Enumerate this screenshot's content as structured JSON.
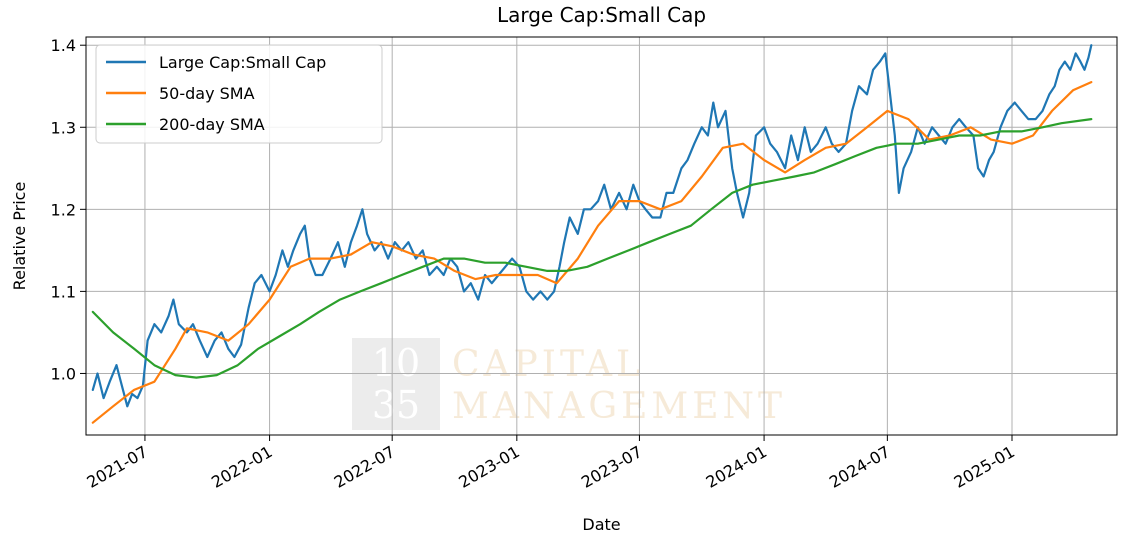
{
  "chart_data": {
    "type": "line",
    "title": "Large Cap:Small Cap",
    "xlabel": "Date",
    "ylabel": "Relative Price",
    "xlim": [
      "2021-04-05",
      "2025-06-05"
    ],
    "ylim": [
      0.925,
      1.41
    ],
    "grid": true,
    "legend_position": "top-left",
    "x_ticks": [
      {
        "date": "2021-07-01",
        "label": "2021-07"
      },
      {
        "date": "2022-01-01",
        "label": "2022-01"
      },
      {
        "date": "2022-07-01",
        "label": "2022-07"
      },
      {
        "date": "2023-01-01",
        "label": "2023-01"
      },
      {
        "date": "2023-07-01",
        "label": "2023-07"
      },
      {
        "date": "2024-01-01",
        "label": "2024-01"
      },
      {
        "date": "2024-07-01",
        "label": "2024-07"
      },
      {
        "date": "2025-01-01",
        "label": "2025-01"
      }
    ],
    "y_ticks": [
      {
        "value": 1.0,
        "label": "1.0"
      },
      {
        "value": 1.1,
        "label": "1.1"
      },
      {
        "value": 1.2,
        "label": "1.2"
      },
      {
        "value": 1.3,
        "label": "1.3"
      },
      {
        "value": 1.4,
        "label": "1.4"
      }
    ],
    "series": [
      {
        "name": "Large Cap:Small Cap",
        "color": "#1f77b4",
        "points": [
          [
            "2021-04-15",
            0.98
          ],
          [
            "2021-04-22",
            1.0
          ],
          [
            "2021-05-01",
            0.97
          ],
          [
            "2021-05-10",
            0.99
          ],
          [
            "2021-05-20",
            1.01
          ],
          [
            "2021-05-28",
            0.985
          ],
          [
            "2021-06-05",
            0.96
          ],
          [
            "2021-06-12",
            0.975
          ],
          [
            "2021-06-20",
            0.97
          ],
          [
            "2021-06-28",
            0.985
          ],
          [
            "2021-07-05",
            1.04
          ],
          [
            "2021-07-15",
            1.06
          ],
          [
            "2021-07-25",
            1.05
          ],
          [
            "2021-08-05",
            1.07
          ],
          [
            "2021-08-12",
            1.09
          ],
          [
            "2021-08-20",
            1.06
          ],
          [
            "2021-09-01",
            1.05
          ],
          [
            "2021-09-10",
            1.06
          ],
          [
            "2021-09-20",
            1.04
          ],
          [
            "2021-10-01",
            1.02
          ],
          [
            "2021-10-12",
            1.04
          ],
          [
            "2021-10-22",
            1.05
          ],
          [
            "2021-11-01",
            1.03
          ],
          [
            "2021-11-10",
            1.02
          ],
          [
            "2021-11-20",
            1.035
          ],
          [
            "2021-12-01",
            1.08
          ],
          [
            "2021-12-10",
            1.11
          ],
          [
            "2021-12-20",
            1.12
          ],
          [
            "2022-01-01",
            1.1
          ],
          [
            "2022-01-10",
            1.12
          ],
          [
            "2022-01-20",
            1.15
          ],
          [
            "2022-01-28",
            1.13
          ],
          [
            "2022-02-05",
            1.15
          ],
          [
            "2022-02-15",
            1.17
          ],
          [
            "2022-02-22",
            1.18
          ],
          [
            "2022-03-01",
            1.14
          ],
          [
            "2022-03-10",
            1.12
          ],
          [
            "2022-03-20",
            1.12
          ],
          [
            "2022-04-01",
            1.14
          ],
          [
            "2022-04-12",
            1.16
          ],
          [
            "2022-04-22",
            1.13
          ],
          [
            "2022-05-01",
            1.16
          ],
          [
            "2022-05-10",
            1.18
          ],
          [
            "2022-05-18",
            1.2
          ],
          [
            "2022-05-25",
            1.17
          ],
          [
            "2022-06-05",
            1.15
          ],
          [
            "2022-06-15",
            1.16
          ],
          [
            "2022-06-25",
            1.14
          ],
          [
            "2022-07-05",
            1.16
          ],
          [
            "2022-07-15",
            1.15
          ],
          [
            "2022-07-25",
            1.16
          ],
          [
            "2022-08-05",
            1.14
          ],
          [
            "2022-08-15",
            1.15
          ],
          [
            "2022-08-25",
            1.12
          ],
          [
            "2022-09-05",
            1.13
          ],
          [
            "2022-09-15",
            1.12
          ],
          [
            "2022-09-25",
            1.14
          ],
          [
            "2022-10-05",
            1.13
          ],
          [
            "2022-10-15",
            1.1
          ],
          [
            "2022-10-25",
            1.11
          ],
          [
            "2022-11-05",
            1.09
          ],
          [
            "2022-11-15",
            1.12
          ],
          [
            "2022-11-25",
            1.11
          ],
          [
            "2022-12-05",
            1.12
          ],
          [
            "2022-12-15",
            1.13
          ],
          [
            "2022-12-25",
            1.14
          ],
          [
            "2023-01-05",
            1.13
          ],
          [
            "2023-01-15",
            1.1
          ],
          [
            "2023-01-25",
            1.09
          ],
          [
            "2023-02-05",
            1.1
          ],
          [
            "2023-02-15",
            1.09
          ],
          [
            "2023-02-25",
            1.1
          ],
          [
            "2023-03-05",
            1.13
          ],
          [
            "2023-03-12",
            1.16
          ],
          [
            "2023-03-20",
            1.19
          ],
          [
            "2023-04-01",
            1.17
          ],
          [
            "2023-04-10",
            1.2
          ],
          [
            "2023-04-20",
            1.2
          ],
          [
            "2023-05-01",
            1.21
          ],
          [
            "2023-05-10",
            1.23
          ],
          [
            "2023-05-20",
            1.2
          ],
          [
            "2023-06-01",
            1.22
          ],
          [
            "2023-06-12",
            1.2
          ],
          [
            "2023-06-22",
            1.23
          ],
          [
            "2023-07-01",
            1.21
          ],
          [
            "2023-07-10",
            1.2
          ],
          [
            "2023-07-20",
            1.19
          ],
          [
            "2023-08-01",
            1.19
          ],
          [
            "2023-08-10",
            1.22
          ],
          [
            "2023-08-20",
            1.22
          ],
          [
            "2023-09-01",
            1.25
          ],
          [
            "2023-09-10",
            1.26
          ],
          [
            "2023-09-20",
            1.28
          ],
          [
            "2023-10-01",
            1.3
          ],
          [
            "2023-10-10",
            1.29
          ],
          [
            "2023-10-18",
            1.33
          ],
          [
            "2023-10-25",
            1.3
          ],
          [
            "2023-11-05",
            1.32
          ],
          [
            "2023-11-15",
            1.25
          ],
          [
            "2023-11-22",
            1.22
          ],
          [
            "2023-12-01",
            1.19
          ],
          [
            "2023-12-10",
            1.22
          ],
          [
            "2023-12-20",
            1.29
          ],
          [
            "2024-01-01",
            1.3
          ],
          [
            "2024-01-10",
            1.28
          ],
          [
            "2024-01-20",
            1.27
          ],
          [
            "2024-02-01",
            1.25
          ],
          [
            "2024-02-10",
            1.29
          ],
          [
            "2024-02-20",
            1.26
          ],
          [
            "2024-03-01",
            1.3
          ],
          [
            "2024-03-10",
            1.27
          ],
          [
            "2024-03-20",
            1.28
          ],
          [
            "2024-04-01",
            1.3
          ],
          [
            "2024-04-10",
            1.28
          ],
          [
            "2024-04-20",
            1.27
          ],
          [
            "2024-05-01",
            1.28
          ],
          [
            "2024-05-10",
            1.32
          ],
          [
            "2024-05-20",
            1.35
          ],
          [
            "2024-06-01",
            1.34
          ],
          [
            "2024-06-10",
            1.37
          ],
          [
            "2024-06-20",
            1.38
          ],
          [
            "2024-06-28",
            1.39
          ],
          [
            "2024-07-05",
            1.34
          ],
          [
            "2024-07-12",
            1.29
          ],
          [
            "2024-07-18",
            1.22
          ],
          [
            "2024-07-25",
            1.25
          ],
          [
            "2024-08-05",
            1.27
          ],
          [
            "2024-08-15",
            1.3
          ],
          [
            "2024-08-25",
            1.28
          ],
          [
            "2024-09-05",
            1.3
          ],
          [
            "2024-09-15",
            1.29
          ],
          [
            "2024-09-25",
            1.28
          ],
          [
            "2024-10-05",
            1.3
          ],
          [
            "2024-10-15",
            1.31
          ],
          [
            "2024-10-25",
            1.3
          ],
          [
            "2024-11-05",
            1.29
          ],
          [
            "2024-11-12",
            1.25
          ],
          [
            "2024-11-20",
            1.24
          ],
          [
            "2024-11-28",
            1.26
          ],
          [
            "2024-12-05",
            1.27
          ],
          [
            "2024-12-15",
            1.3
          ],
          [
            "2024-12-25",
            1.32
          ],
          [
            "2025-01-05",
            1.33
          ],
          [
            "2025-01-15",
            1.32
          ],
          [
            "2025-01-25",
            1.31
          ],
          [
            "2025-02-05",
            1.31
          ],
          [
            "2025-02-15",
            1.32
          ],
          [
            "2025-02-25",
            1.34
          ],
          [
            "2025-03-05",
            1.35
          ],
          [
            "2025-03-12",
            1.37
          ],
          [
            "2025-03-20",
            1.38
          ],
          [
            "2025-03-28",
            1.37
          ],
          [
            "2025-04-05",
            1.39
          ],
          [
            "2025-04-12",
            1.38
          ],
          [
            "2025-04-18",
            1.37
          ],
          [
            "2025-04-24",
            1.385
          ],
          [
            "2025-04-28",
            1.4
          ]
        ]
      },
      {
        "name": "50-day SMA",
        "color": "#ff7f0e",
        "points": [
          [
            "2021-04-15",
            0.94
          ],
          [
            "2021-05-15",
            0.96
          ],
          [
            "2021-06-15",
            0.98
          ],
          [
            "2021-07-15",
            0.99
          ],
          [
            "2021-08-15",
            1.03
          ],
          [
            "2021-09-01",
            1.055
          ],
          [
            "2021-10-01",
            1.05
          ],
          [
            "2021-11-01",
            1.04
          ],
          [
            "2021-12-01",
            1.06
          ],
          [
            "2022-01-01",
            1.09
          ],
          [
            "2022-02-01",
            1.13
          ],
          [
            "2022-03-01",
            1.14
          ],
          [
            "2022-04-01",
            1.14
          ],
          [
            "2022-05-01",
            1.145
          ],
          [
            "2022-06-01",
            1.16
          ],
          [
            "2022-07-01",
            1.155
          ],
          [
            "2022-08-01",
            1.145
          ],
          [
            "2022-09-01",
            1.14
          ],
          [
            "2022-10-01",
            1.125
          ],
          [
            "2022-11-01",
            1.115
          ],
          [
            "2022-12-01",
            1.12
          ],
          [
            "2023-01-01",
            1.12
          ],
          [
            "2023-02-01",
            1.12
          ],
          [
            "2023-03-01",
            1.11
          ],
          [
            "2023-04-01",
            1.14
          ],
          [
            "2023-05-01",
            1.18
          ],
          [
            "2023-06-01",
            1.21
          ],
          [
            "2023-07-01",
            1.21
          ],
          [
            "2023-08-01",
            1.2
          ],
          [
            "2023-09-01",
            1.21
          ],
          [
            "2023-10-01",
            1.24
          ],
          [
            "2023-11-01",
            1.275
          ],
          [
            "2023-12-01",
            1.28
          ],
          [
            "2024-01-01",
            1.26
          ],
          [
            "2024-02-01",
            1.245
          ],
          [
            "2024-03-01",
            1.26
          ],
          [
            "2024-04-01",
            1.275
          ],
          [
            "2024-05-01",
            1.28
          ],
          [
            "2024-06-01",
            1.3
          ],
          [
            "2024-07-01",
            1.32
          ],
          [
            "2024-08-01",
            1.31
          ],
          [
            "2024-09-01",
            1.285
          ],
          [
            "2024-10-01",
            1.29
          ],
          [
            "2024-11-01",
            1.3
          ],
          [
            "2024-12-01",
            1.285
          ],
          [
            "2025-01-01",
            1.28
          ],
          [
            "2025-02-01",
            1.29
          ],
          [
            "2025-03-01",
            1.32
          ],
          [
            "2025-04-01",
            1.345
          ],
          [
            "2025-04-28",
            1.355
          ]
        ]
      },
      {
        "name": "200-day SMA",
        "color": "#2ca02c",
        "points": [
          [
            "2021-04-15",
            1.075
          ],
          [
            "2021-05-15",
            1.05
          ],
          [
            "2021-06-15",
            1.03
          ],
          [
            "2021-07-15",
            1.01
          ],
          [
            "2021-08-15",
            0.998
          ],
          [
            "2021-09-15",
            0.995
          ],
          [
            "2021-10-15",
            0.998
          ],
          [
            "2021-11-15",
            1.01
          ],
          [
            "2021-12-15",
            1.03
          ],
          [
            "2022-01-15",
            1.045
          ],
          [
            "2022-02-15",
            1.06
          ],
          [
            "2022-03-15",
            1.075
          ],
          [
            "2022-04-15",
            1.09
          ],
          [
            "2022-05-15",
            1.1
          ],
          [
            "2022-06-15",
            1.11
          ],
          [
            "2022-07-15",
            1.12
          ],
          [
            "2022-08-15",
            1.13
          ],
          [
            "2022-09-15",
            1.14
          ],
          [
            "2022-10-15",
            1.14
          ],
          [
            "2022-11-15",
            1.135
          ],
          [
            "2022-12-15",
            1.135
          ],
          [
            "2023-01-15",
            1.13
          ],
          [
            "2023-02-15",
            1.125
          ],
          [
            "2023-03-15",
            1.125
          ],
          [
            "2023-04-15",
            1.13
          ],
          [
            "2023-05-15",
            1.14
          ],
          [
            "2023-06-15",
            1.15
          ],
          [
            "2023-07-15",
            1.16
          ],
          [
            "2023-08-15",
            1.17
          ],
          [
            "2023-09-15",
            1.18
          ],
          [
            "2023-10-15",
            1.2
          ],
          [
            "2023-11-15",
            1.22
          ],
          [
            "2023-12-15",
            1.23
          ],
          [
            "2024-01-15",
            1.235
          ],
          [
            "2024-02-15",
            1.24
          ],
          [
            "2024-03-15",
            1.245
          ],
          [
            "2024-04-15",
            1.255
          ],
          [
            "2024-05-15",
            1.265
          ],
          [
            "2024-06-15",
            1.275
          ],
          [
            "2024-07-15",
            1.28
          ],
          [
            "2024-08-15",
            1.28
          ],
          [
            "2024-09-15",
            1.285
          ],
          [
            "2024-10-15",
            1.29
          ],
          [
            "2024-11-15",
            1.29
          ],
          [
            "2024-12-15",
            1.295
          ],
          [
            "2025-01-15",
            1.295
          ],
          [
            "2025-02-15",
            1.3
          ],
          [
            "2025-03-15",
            1.305
          ],
          [
            "2025-04-28",
            1.31
          ]
        ]
      }
    ]
  },
  "watermark": {
    "line1": "10",
    "line2": "35",
    "word1": "CAPITAL",
    "word2": "MANAGEMENT",
    "box_color": "#ececec",
    "text_color": "#f6ead8"
  }
}
